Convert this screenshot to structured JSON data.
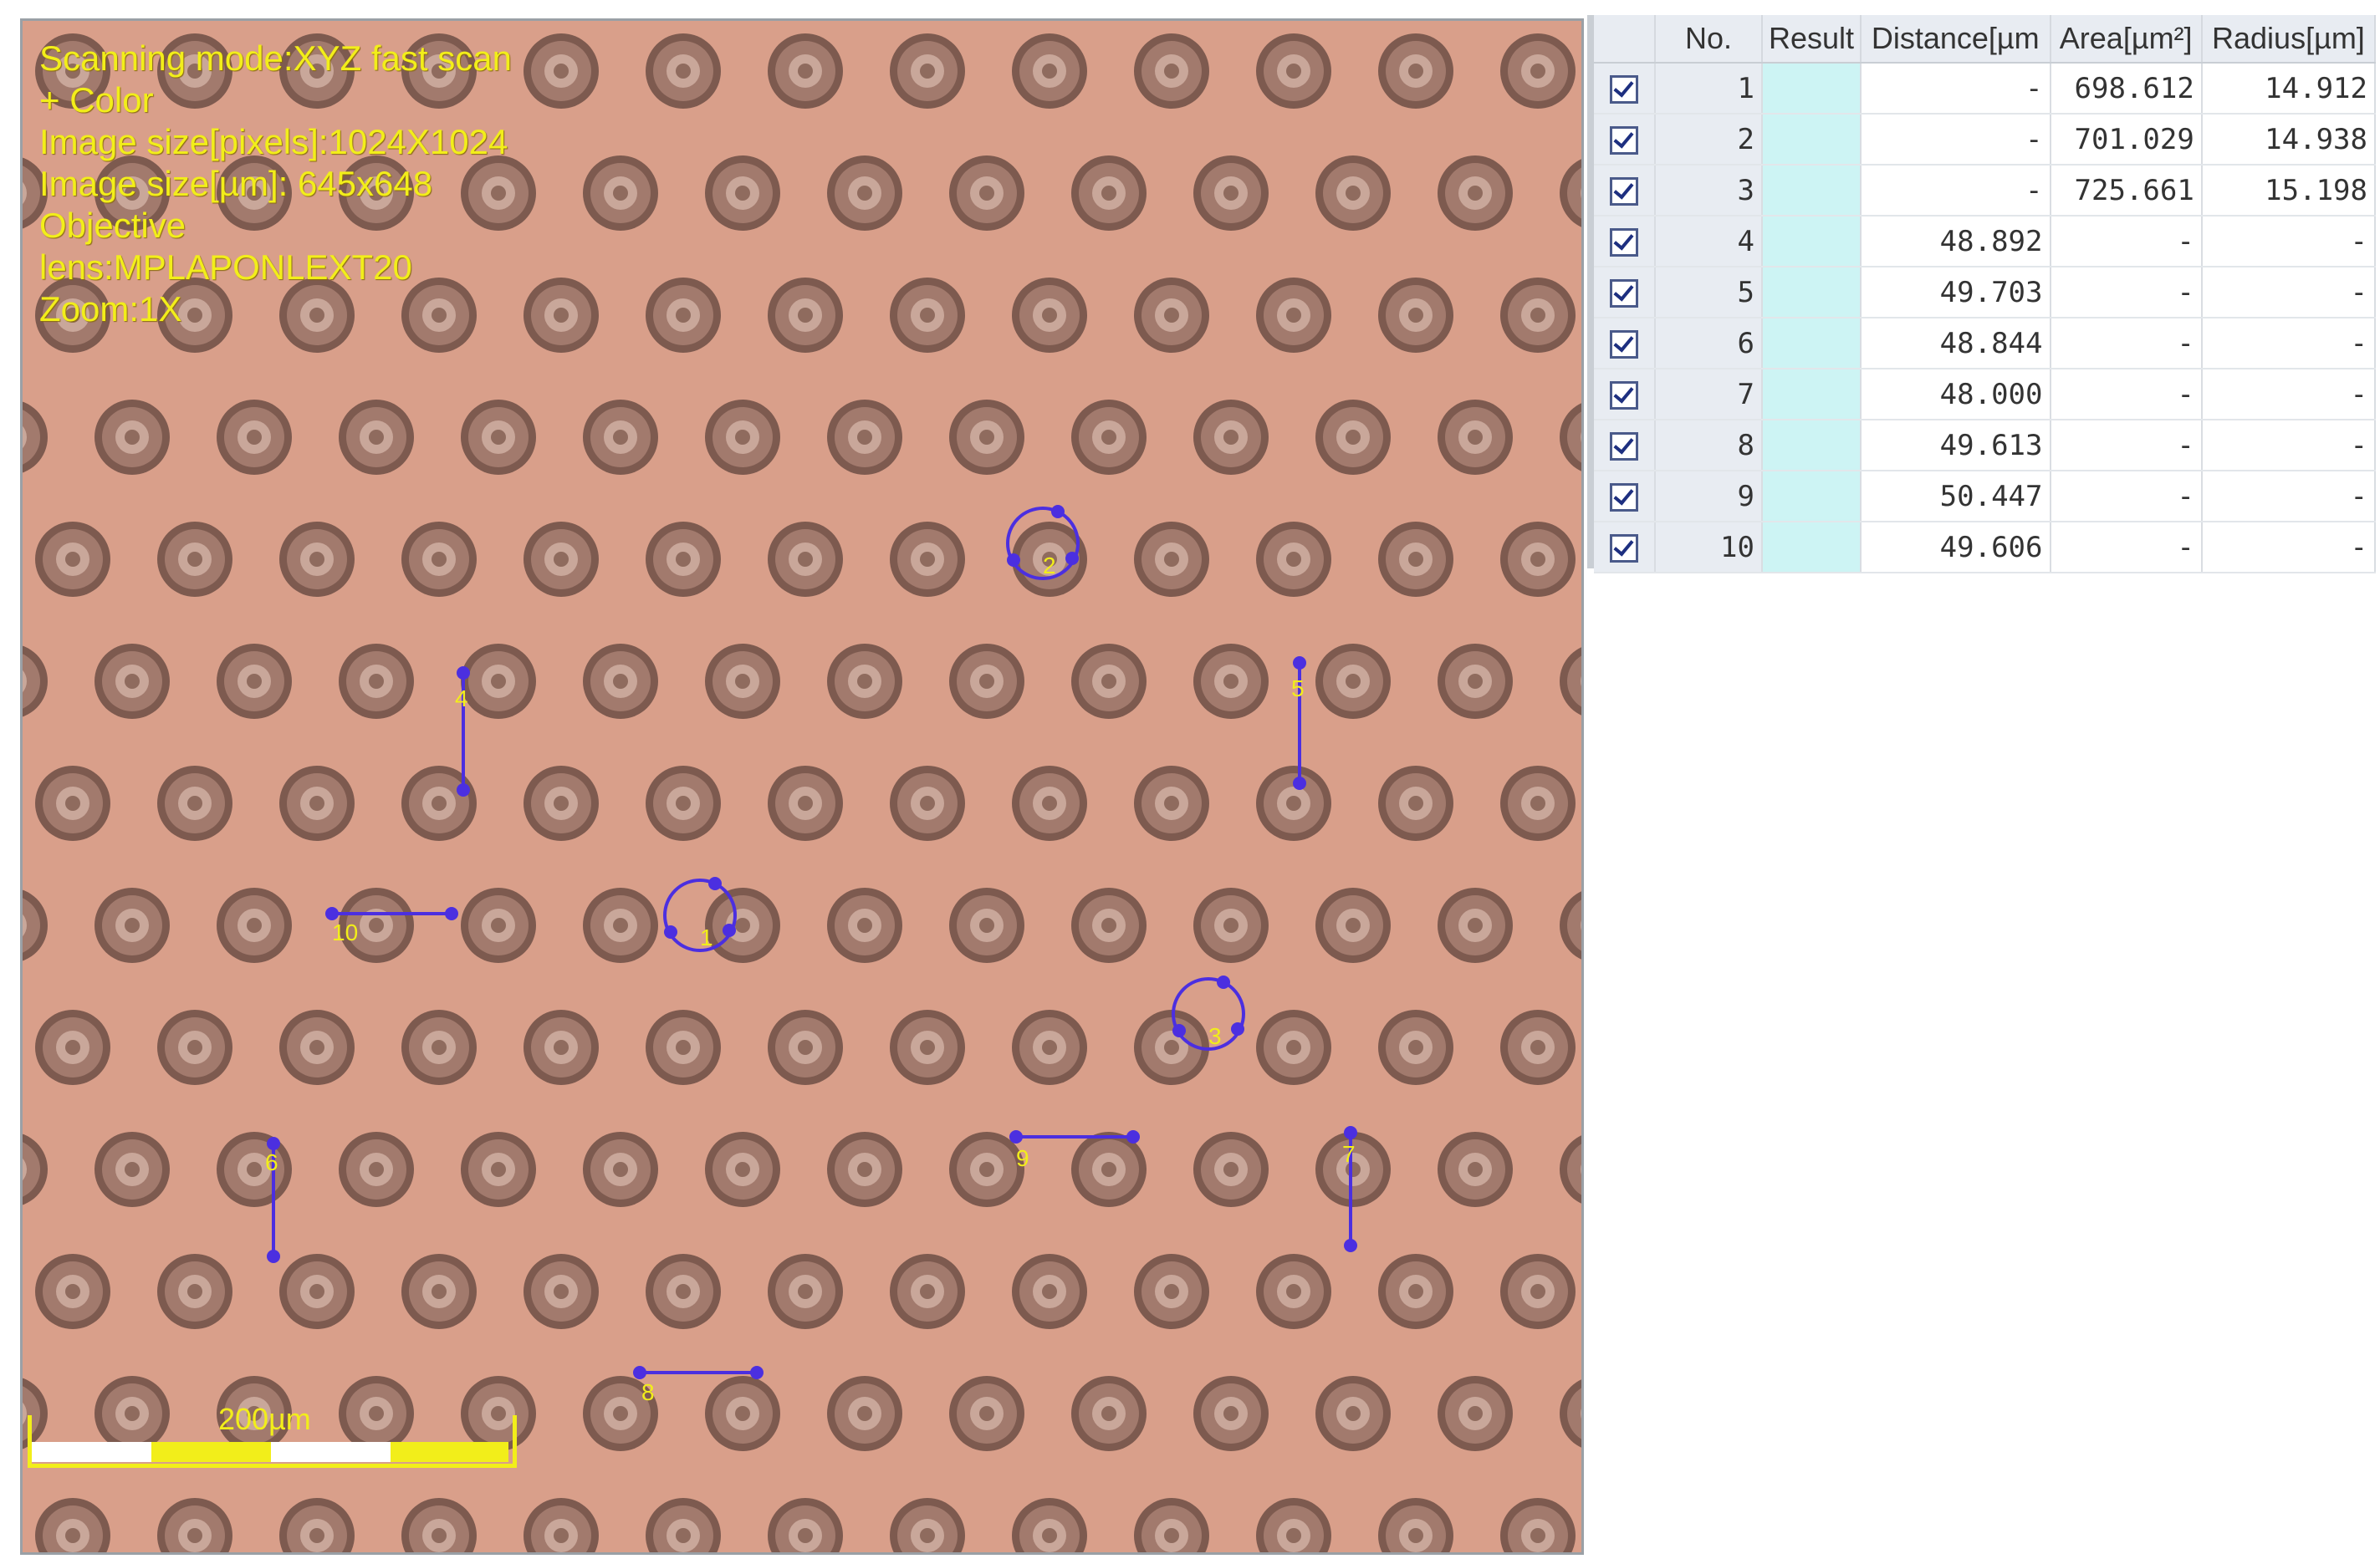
{
  "viewer": {
    "info_lines": [
      "Scanning mode:XYZ fast scan",
      "+ Color",
      "Image size[pixels]:1024X1024",
      "Image size[µm]: 645x648",
      "Objective",
      "lens:MPLAPONLEXT20",
      "Zoom:1X"
    ],
    "scale_bar_label": "200µm",
    "marker_labels": [
      "1",
      "2",
      "3",
      "4",
      "5",
      "6",
      "7",
      "8",
      "9",
      "10"
    ],
    "colors": {
      "background": "#d99f8a",
      "annotation": "#f2ee1a",
      "marker": "#4b2fe0"
    }
  },
  "table": {
    "headers": [
      "No.",
      "Result",
      "Distance[µm",
      "Area[µm²]",
      "Radius[µm]"
    ],
    "rows": [
      {
        "no": "1",
        "result": "",
        "distance": "-",
        "area": "698.612",
        "radius": "14.912",
        "checked": true
      },
      {
        "no": "2",
        "result": "",
        "distance": "-",
        "area": "701.029",
        "radius": "14.938",
        "checked": true
      },
      {
        "no": "3",
        "result": "",
        "distance": "-",
        "area": "725.661",
        "radius": "15.198",
        "checked": true
      },
      {
        "no": "4",
        "result": "",
        "distance": "48.892",
        "area": "-",
        "radius": "-",
        "checked": true
      },
      {
        "no": "5",
        "result": "",
        "distance": "49.703",
        "area": "-",
        "radius": "-",
        "checked": true
      },
      {
        "no": "6",
        "result": "",
        "distance": "48.844",
        "area": "-",
        "radius": "-",
        "checked": true
      },
      {
        "no": "7",
        "result": "",
        "distance": "48.000",
        "area": "-",
        "radius": "-",
        "checked": true
      },
      {
        "no": "8",
        "result": "",
        "distance": "49.613",
        "area": "-",
        "radius": "-",
        "checked": true
      },
      {
        "no": "9",
        "result": "",
        "distance": "50.447",
        "area": "-",
        "radius": "-",
        "checked": true
      },
      {
        "no": "10",
        "result": "",
        "distance": "49.606",
        "area": "-",
        "radius": "-",
        "checked": true
      }
    ]
  }
}
